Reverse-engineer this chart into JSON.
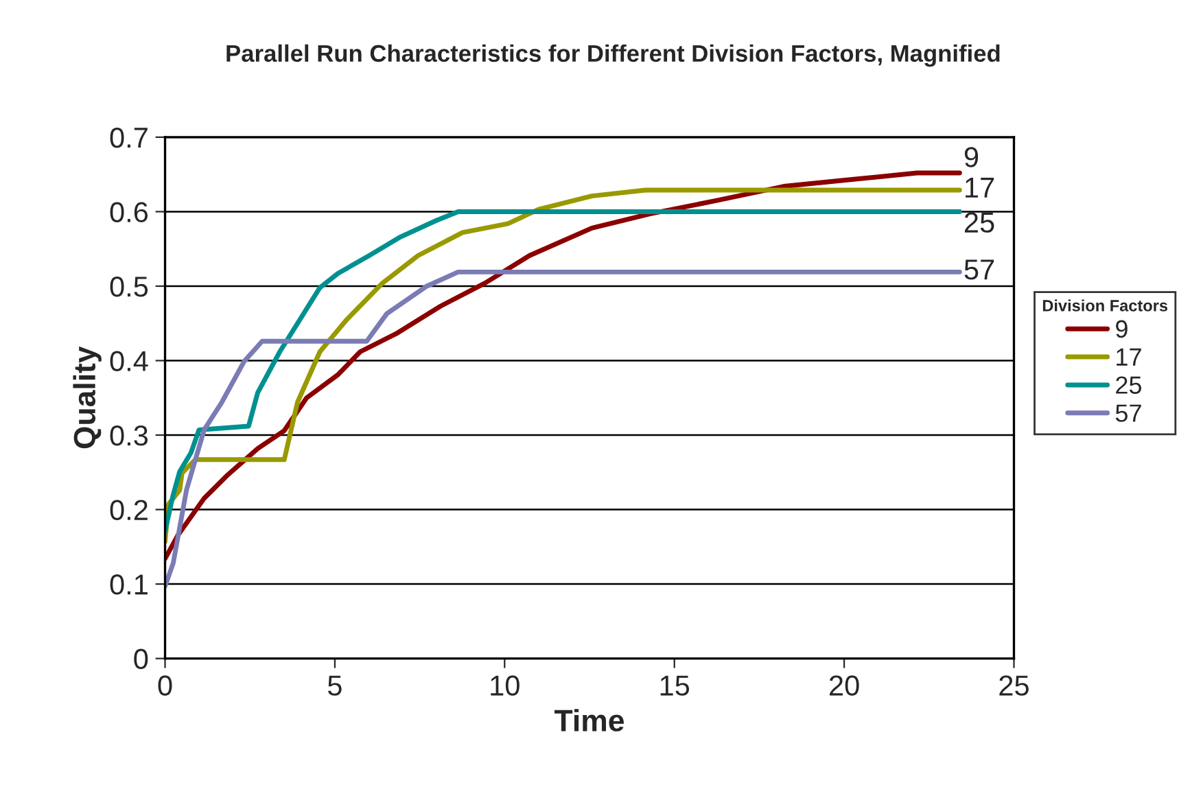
{
  "chart_data": {
    "type": "line",
    "title": "Parallel Run Characteristics for Different Division Factors, Magnified",
    "xlabel": "Time",
    "ylabel": "Quality",
    "legend_title": "Division Factors",
    "xlim": [
      0,
      25
    ],
    "xticks": [
      0,
      5,
      10,
      15,
      20,
      25
    ],
    "ylim": [
      0,
      0.7
    ],
    "yticks": [
      0,
      0.1,
      0.2,
      0.3,
      0.4,
      0.5,
      0.6,
      0.7
    ],
    "grid": "y",
    "legend": "right",
    "marker": "none",
    "line_style": "solid",
    "series": [
      {
        "name": "9",
        "color": "#8b0000",
        "x": [
          0,
          0.37,
          1.15,
          1.81,
          2.73,
          3.51,
          4.17,
          5.09,
          5.75,
          6.8,
          8.11,
          9.42,
          10.73,
          12.57,
          14.28,
          16.25,
          18.22,
          20.18,
          22.15,
          23.4
        ],
        "values": [
          0.134,
          0.165,
          0.215,
          0.245,
          0.282,
          0.306,
          0.35,
          0.381,
          0.412,
          0.436,
          0.473,
          0.504,
          0.541,
          0.578,
          0.597,
          0.615,
          0.634,
          0.643,
          0.652,
          0.652
        ]
      },
      {
        "name": "17",
        "color": "#999900",
        "x": [
          0,
          0.1,
          0.43,
          0.5,
          0.89,
          3.51,
          3.9,
          4.56,
          5.35,
          6.4,
          7.45,
          8.76,
          10.1,
          11.0,
          12.57,
          14.15,
          23.4
        ],
        "values": [
          0.157,
          0.207,
          0.226,
          0.249,
          0.267,
          0.267,
          0.344,
          0.412,
          0.455,
          0.504,
          0.541,
          0.572,
          0.584,
          0.603,
          0.621,
          0.629,
          0.629
        ]
      },
      {
        "name": "25",
        "color": "#009090",
        "x": [
          0,
          0.24,
          0.43,
          0.76,
          1.0,
          2.46,
          2.73,
          3.38,
          4.56,
          5.09,
          6.01,
          6.93,
          7.98,
          8.63,
          23.4
        ],
        "values": [
          0.171,
          0.22,
          0.251,
          0.276,
          0.307,
          0.312,
          0.357,
          0.412,
          0.498,
          0.517,
          0.541,
          0.566,
          0.588,
          0.6,
          0.6
        ]
      },
      {
        "name": "57",
        "color": "#7b7bb5",
        "x": [
          0,
          0.24,
          0.63,
          1.15,
          1.67,
          2.33,
          2.86,
          5.94,
          6.53,
          7.71,
          8.63,
          23.4
        ],
        "values": [
          0.097,
          0.128,
          0.226,
          0.307,
          0.344,
          0.399,
          0.426,
          0.426,
          0.463,
          0.5,
          0.519,
          0.519
        ]
      }
    ]
  }
}
